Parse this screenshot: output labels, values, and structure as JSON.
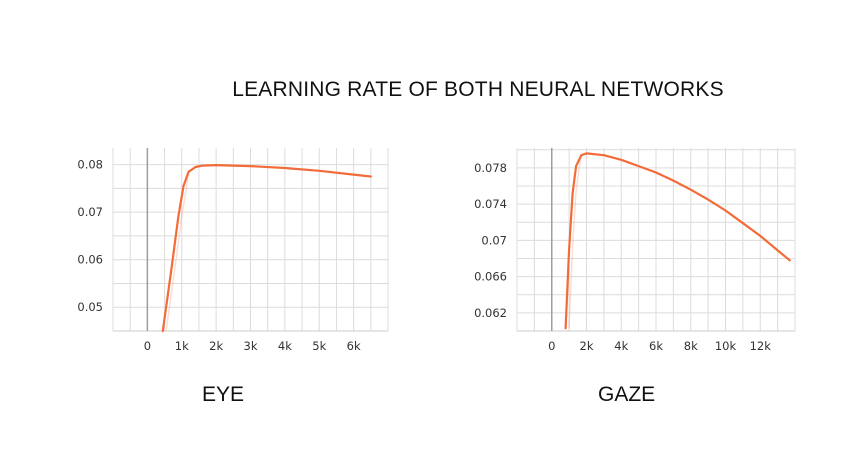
{
  "title": "LEARNING RATE OF BOTH NEURAL NETWORKS",
  "chart_data": [
    {
      "type": "line",
      "title": "",
      "caption": "EYE",
      "xlim": [
        -1000,
        7000
      ],
      "ylim": [
        0.045,
        0.0835
      ],
      "x_ticks": [
        0,
        1000,
        2000,
        3000,
        4000,
        5000,
        6000
      ],
      "x_tick_labels": [
        "0",
        "1k",
        "2k",
        "3k",
        "4k",
        "5k",
        "6k"
      ],
      "y_ticks": [
        0.05,
        0.06,
        0.07,
        0.08
      ],
      "y_tick_labels": [
        "0.05",
        "0.06",
        "0.07",
        "0.08"
      ],
      "grid": true,
      "color": "#f26b38",
      "series": [
        {
          "x": [
            450,
            700,
            900,
            1050,
            1200,
            1400,
            1600,
            2000,
            3000,
            4000,
            5000,
            6000,
            6500
          ],
          "y": [
            0.045,
            0.058,
            0.069,
            0.0755,
            0.0785,
            0.0795,
            0.0798,
            0.0799,
            0.0797,
            0.0793,
            0.0787,
            0.0779,
            0.0775
          ]
        }
      ]
    },
    {
      "type": "line",
      "title": "",
      "caption": "GAZE",
      "xlim": [
        -2000,
        14000
      ],
      "ylim": [
        0.06,
        0.0802
      ],
      "x_ticks": [
        0,
        2000,
        4000,
        6000,
        8000,
        10000,
        12000
      ],
      "x_tick_labels": [
        "0",
        "2k",
        "4k",
        "6k",
        "8k",
        "10k",
        "12k"
      ],
      "y_ticks": [
        0.062,
        0.066,
        0.07,
        0.074,
        0.078
      ],
      "y_tick_labels": [
        "0.062",
        "0.066",
        "0.07",
        "0.074",
        "0.078"
      ],
      "grid": true,
      "color": "#f26b38",
      "series": [
        {
          "x": [
            800,
            1000,
            1200,
            1400,
            1700,
            2000,
            3000,
            4000,
            5000,
            6000,
            7000,
            8000,
            9000,
            10000,
            11000,
            12000,
            13000,
            13700
          ],
          "y": [
            0.0603,
            0.069,
            0.0752,
            0.0782,
            0.0794,
            0.0796,
            0.0794,
            0.0789,
            0.0782,
            0.0775,
            0.0766,
            0.0756,
            0.0745,
            0.0733,
            0.0719,
            0.0705,
            0.0689,
            0.0678
          ]
        }
      ]
    }
  ]
}
